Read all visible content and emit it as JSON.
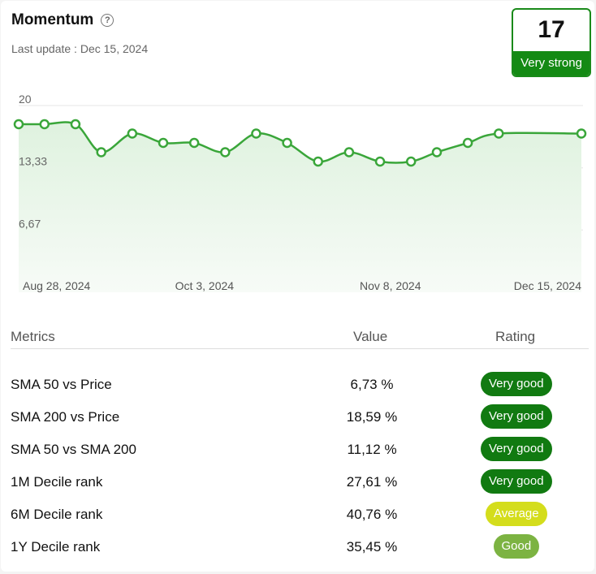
{
  "header": {
    "title": "Momentum",
    "updated": "Last update : Dec 15, 2024",
    "score": "17",
    "score_label": "Very strong"
  },
  "colors": {
    "line": "#3aa63a",
    "very_good": "#117a11",
    "good": "#7cb342",
    "average": "#d4dd1c"
  },
  "chart_data": {
    "type": "area",
    "y_ticks": [
      "20",
      "13,33",
      "6,67"
    ],
    "y_tick_values": [
      20,
      13.33,
      6.67
    ],
    "ylim": [
      0,
      20
    ],
    "x_ticks": [
      "Aug 28, 2024",
      "Oct 3, 2024",
      "Nov 8, 2024",
      "Dec 15, 2024"
    ],
    "x": [
      "2024-08-28",
      "2024-09-02",
      "2024-09-08",
      "2024-09-13",
      "2024-09-19",
      "2024-09-25",
      "2024-10-01",
      "2024-10-07",
      "2024-10-13",
      "2024-10-19",
      "2024-10-25",
      "2024-10-31",
      "2024-11-06",
      "2024-11-12",
      "2024-11-17",
      "2024-11-23",
      "2024-11-29",
      "2024-12-15"
    ],
    "values": [
      18.0,
      18.0,
      18.0,
      15.0,
      17.0,
      16.0,
      16.0,
      15.0,
      17.0,
      16.0,
      14.0,
      15.0,
      14.0,
      14.0,
      15.0,
      16.0,
      17.0,
      17.0
    ],
    "grid": true,
    "legend": "none"
  },
  "table": {
    "headers": {
      "metric": "Metrics",
      "value": "Value",
      "rating": "Rating"
    },
    "rows": [
      {
        "metric": "SMA 50 vs Price",
        "value": "6,73 %",
        "rating": "Very good",
        "level": "very_good"
      },
      {
        "metric": "SMA 200 vs Price",
        "value": "18,59 %",
        "rating": "Very good",
        "level": "very_good"
      },
      {
        "metric": "SMA 50 vs SMA 200",
        "value": "11,12 %",
        "rating": "Very good",
        "level": "very_good"
      },
      {
        "metric": "1M Decile rank",
        "value": "27,61 %",
        "rating": "Very good",
        "level": "very_good"
      },
      {
        "metric": "6M Decile rank",
        "value": "40,76 %",
        "rating": "Average",
        "level": "average"
      },
      {
        "metric": "1Y Decile rank",
        "value": "35,45 %",
        "rating": "Good",
        "level": "good"
      }
    ]
  }
}
